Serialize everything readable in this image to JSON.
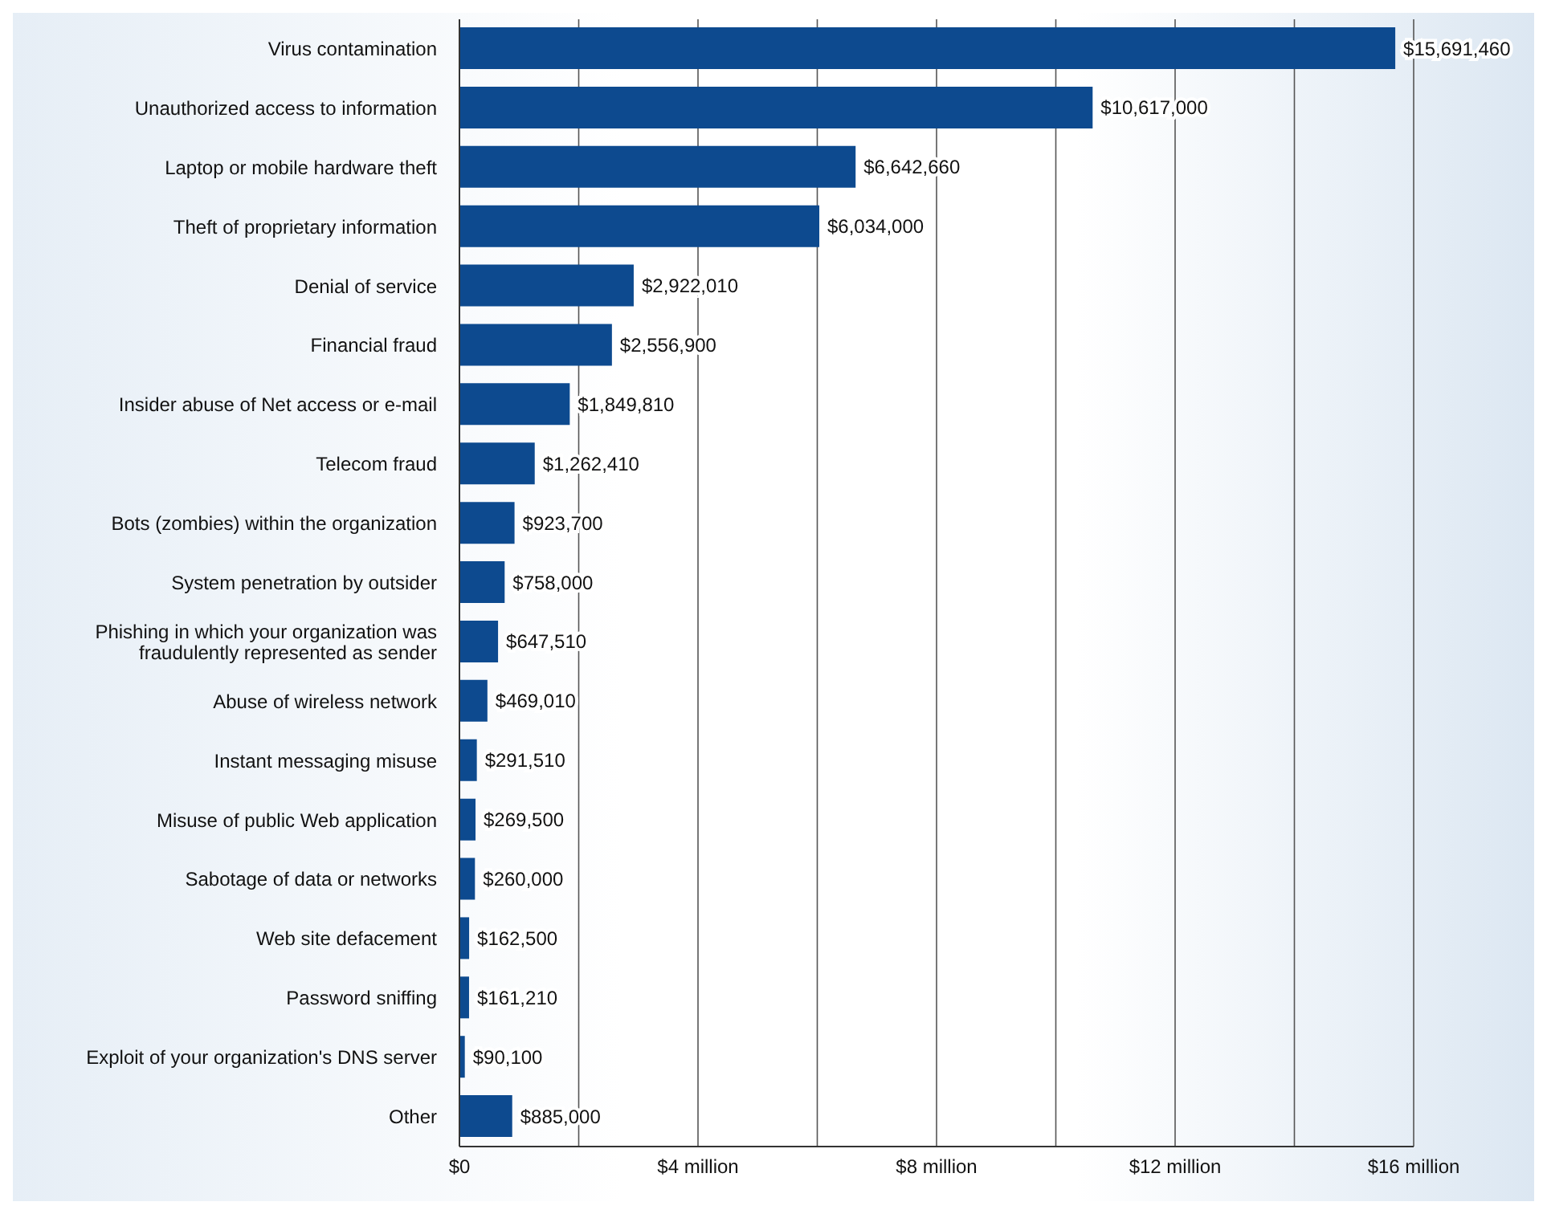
{
  "chart_data": {
    "type": "bar",
    "orientation": "horizontal",
    "categories": [
      "Virus contamination",
      "Unauthorized access to information",
      "Laptop or mobile hardware theft",
      "Theft of proprietary information",
      "Denial of service",
      "Financial fraud",
      "Insider abuse of Net access or e-mail",
      "Telecom fraud",
      "Bots (zombies) within the organization",
      "System penetration by outsider",
      "Phishing in which your organization was fraudulently represented as sender",
      "Abuse of wireless network",
      "Instant messaging misuse",
      "Misuse of public Web application",
      "Sabotage of data or networks",
      "Web site defacement",
      "Password sniffing",
      "Exploit of your organization's DNS server",
      "Other"
    ],
    "values": [
      15691460,
      10617000,
      6642660,
      6034000,
      2922010,
      2556900,
      1849810,
      1262410,
      923700,
      758000,
      647510,
      469010,
      291510,
      269500,
      260000,
      162500,
      161210,
      90100,
      885000
    ],
    "value_labels": [
      "$15,691,460",
      "$10,617,000",
      "$6,642,660",
      "$6,034,000",
      "$2,922,010",
      "$2,556,900",
      "$1,849,810",
      "$1,262,410",
      "$923,700",
      "$758,000",
      "$647,510",
      "$469,010",
      "$291,510",
      "$269,500",
      "$260,000",
      "$162,500",
      "$161,210",
      "$90,100",
      "$885,000"
    ],
    "color": "#0d4a8f",
    "xlim": [
      0,
      16000000
    ],
    "xticks": [
      {
        "value": 0,
        "label": "$0"
      },
      {
        "value": 2000000,
        "label": null
      },
      {
        "value": 4000000,
        "label": "$4 million"
      },
      {
        "value": 6000000,
        "label": null
      },
      {
        "value": 8000000,
        "label": "$8 million"
      },
      {
        "value": 10000000,
        "label": null
      },
      {
        "value": 12000000,
        "label": "$12 million"
      },
      {
        "value": 14000000,
        "label": null
      },
      {
        "value": 16000000,
        "label": "$16 million"
      }
    ],
    "grid": "x"
  }
}
